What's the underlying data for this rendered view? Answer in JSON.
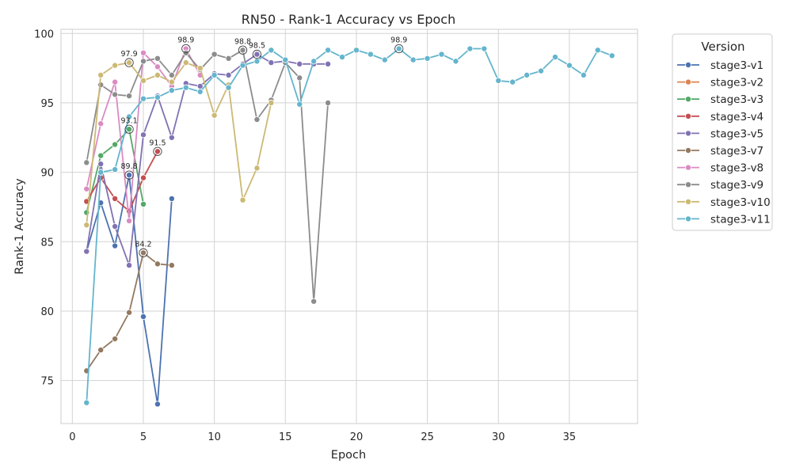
{
  "chart_data": {
    "type": "line",
    "title": "RN50 - Rank-1 Accuracy vs Epoch",
    "xlabel": "Epoch",
    "ylabel": "Rank-1 Accuracy",
    "xlim": [
      -0.8,
      39.8
    ],
    "ylim": [
      71.9,
      100.3
    ],
    "xticks": [
      0,
      5,
      10,
      15,
      20,
      25,
      30,
      35
    ],
    "yticks": [
      75,
      80,
      85,
      90,
      95,
      100
    ],
    "grid": true,
    "legend": {
      "title": "Version",
      "position": "outside-right"
    },
    "series": [
      {
        "name": "stage3-v1",
        "color": "#4c72b0",
        "x": [
          1,
          2,
          3,
          4,
          5,
          6,
          7
        ],
        "y": [
          84.3,
          87.8,
          84.7,
          89.8,
          79.6,
          73.3,
          88.1
        ]
      },
      {
        "name": "stage3-v2",
        "color": "#dd8452",
        "x": [],
        "y": []
      },
      {
        "name": "stage3-v3",
        "color": "#55a868",
        "x": [
          1,
          2,
          3,
          4,
          5
        ],
        "y": [
          87.1,
          91.2,
          92.0,
          93.1,
          87.7
        ]
      },
      {
        "name": "stage3-v4",
        "color": "#c44e52",
        "x": [
          1,
          2,
          3,
          4,
          5,
          6
        ],
        "y": [
          87.9,
          89.6,
          88.1,
          87.2,
          89.6,
          91.5
        ]
      },
      {
        "name": "stage3-v5",
        "color": "#8172b3",
        "x": [
          1,
          2,
          3,
          4,
          5,
          6,
          7,
          8,
          9,
          10,
          11,
          12,
          13,
          14,
          15,
          16,
          17,
          18
        ],
        "y": [
          84.3,
          90.6,
          86.1,
          83.3,
          92.7,
          95.5,
          92.5,
          96.4,
          96.2,
          97.1,
          97.0,
          97.8,
          98.5,
          97.9,
          98.0,
          97.8,
          97.8,
          97.8
        ]
      },
      {
        "name": "stage3-v7",
        "color": "#937860",
        "x": [
          1,
          2,
          3,
          4,
          5,
          6,
          7
        ],
        "y": [
          75.7,
          77.2,
          78.0,
          79.9,
          84.2,
          83.4,
          83.3
        ]
      },
      {
        "name": "stage3-v8",
        "color": "#da8bc3",
        "x": [
          1,
          2,
          3,
          4,
          5,
          6,
          7,
          8,
          9
        ],
        "y": [
          88.8,
          93.5,
          96.5,
          86.5,
          98.6,
          97.6,
          96.2,
          98.9,
          97.0
        ]
      },
      {
        "name": "stage3-v9",
        "color": "#8c8c8c",
        "x": [
          1,
          2,
          3,
          4,
          5,
          6,
          7,
          8,
          9,
          10,
          11,
          12,
          13,
          14,
          15,
          16,
          17,
          18
        ],
        "y": [
          90.7,
          96.3,
          95.6,
          95.5,
          98.0,
          98.2,
          97.0,
          98.6,
          97.4,
          98.5,
          98.2,
          98.8,
          93.8,
          95.2,
          97.9,
          96.8,
          80.7,
          95.0
        ]
      },
      {
        "name": "stage3-v10",
        "color": "#ccb974",
        "x": [
          1,
          2,
          3,
          4,
          5,
          6,
          7,
          8,
          9,
          10,
          11,
          12,
          13,
          14
        ],
        "y": [
          86.2,
          97.0,
          97.7,
          97.9,
          96.6,
          97.0,
          96.5,
          97.9,
          97.5,
          94.1,
          96.3,
          88.0,
          90.3,
          95.0
        ]
      },
      {
        "name": "stage3-v11",
        "color": "#64b5cd",
        "x": [
          1,
          2,
          3,
          4,
          5,
          6,
          7,
          8,
          9,
          10,
          11,
          12,
          13,
          14,
          15,
          16,
          17,
          18,
          19,
          20,
          21,
          22,
          23,
          24,
          25,
          26,
          27,
          28,
          29,
          30,
          31,
          32,
          33,
          34,
          35,
          36,
          37,
          38
        ],
        "y": [
          73.4,
          90.0,
          90.2,
          94.0,
          95.3,
          95.4,
          95.9,
          96.1,
          95.8,
          97.0,
          96.1,
          97.7,
          98.0,
          98.8,
          98.1,
          94.9,
          98.0,
          98.8,
          98.3,
          98.8,
          98.5,
          98.1,
          98.9,
          98.1,
          98.2,
          98.5,
          98.0,
          98.9,
          98.9,
          96.6,
          96.5,
          97.0,
          97.3,
          98.3,
          97.7,
          97.0,
          98.8,
          98.4
        ]
      }
    ],
    "annotations": [
      {
        "text": "97.9",
        "x": 4,
        "y": 97.9,
        "color": "#ccb974"
      },
      {
        "text": "98.9",
        "x": 8,
        "y": 98.9,
        "color": "#da8bc3"
      },
      {
        "text": "98.8",
        "x": 12,
        "y": 98.8,
        "color": "#8c8c8c"
      },
      {
        "text": "98.5",
        "x": 13,
        "y": 98.5,
        "color": "#8172b3"
      },
      {
        "text": "98.9",
        "x": 23,
        "y": 98.9,
        "color": "#64b5cd"
      },
      {
        "text": "93.1",
        "x": 4,
        "y": 93.1,
        "color": "#55a868"
      },
      {
        "text": "91.5",
        "x": 6,
        "y": 91.5,
        "color": "#c44e52"
      },
      {
        "text": "89.8",
        "x": 4,
        "y": 89.8,
        "color": "#4c72b0"
      },
      {
        "text": "84.2",
        "x": 5,
        "y": 84.2,
        "color": "#937860"
      }
    ]
  }
}
